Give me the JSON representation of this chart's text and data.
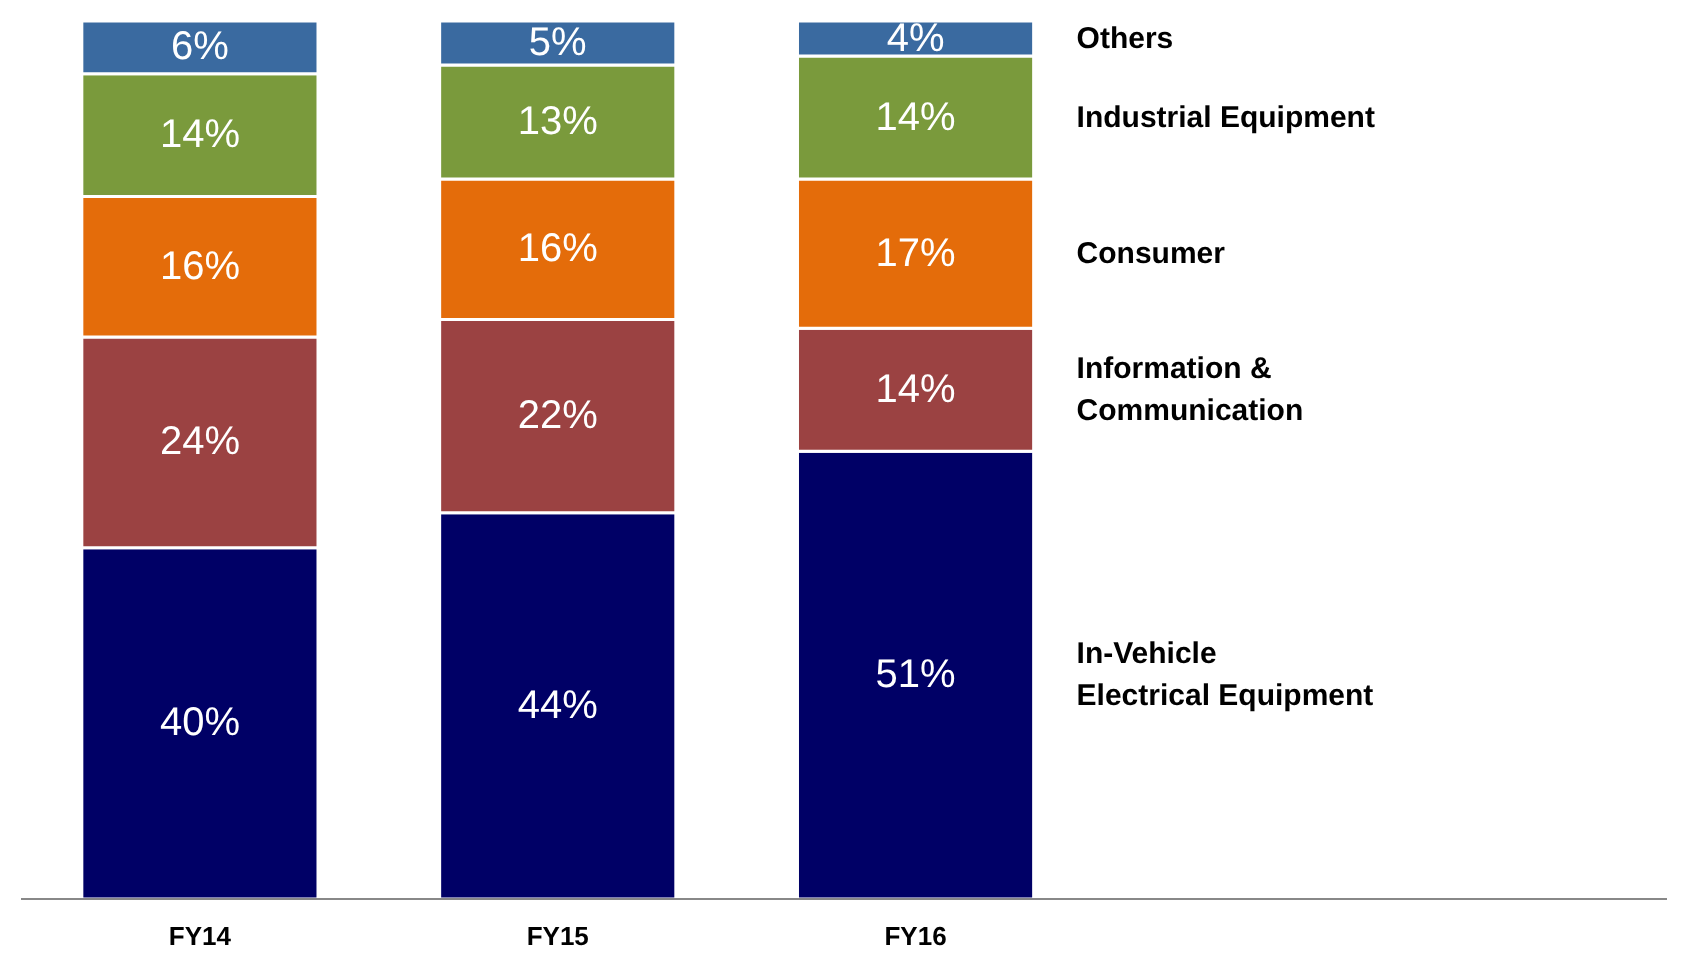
{
  "chart_data": {
    "type": "bar",
    "stacked": true,
    "grid": false,
    "legend": "right",
    "categories": [
      "FY14",
      "FY15",
      "FY16"
    ],
    "series": [
      {
        "name": "In-Vehicle Electrical Equipment",
        "color": "#000066",
        "values": [
          40,
          44,
          51
        ],
        "value_labels": [
          "40%",
          "44%",
          "51%"
        ]
      },
      {
        "name": "Information & Communication",
        "color": "#9b4242",
        "values": [
          24,
          22,
          14
        ],
        "value_labels": [
          "24%",
          "22%",
          "14%"
        ]
      },
      {
        "name": "Consumer",
        "color": "#e46c0a",
        "values": [
          16,
          16,
          17
        ],
        "value_labels": [
          "16%",
          "16%",
          "17%"
        ]
      },
      {
        "name": "Industrial Equipment",
        "color": "#7a9a3c",
        "values": [
          14,
          13,
          14
        ],
        "value_labels": [
          "14%",
          "13%",
          "14%"
        ]
      },
      {
        "name": "Others",
        "color": "#3a6aa0",
        "values": [
          6,
          5,
          4
        ],
        "value_labels": [
          "6%",
          "5%",
          "4%"
        ]
      }
    ]
  }
}
